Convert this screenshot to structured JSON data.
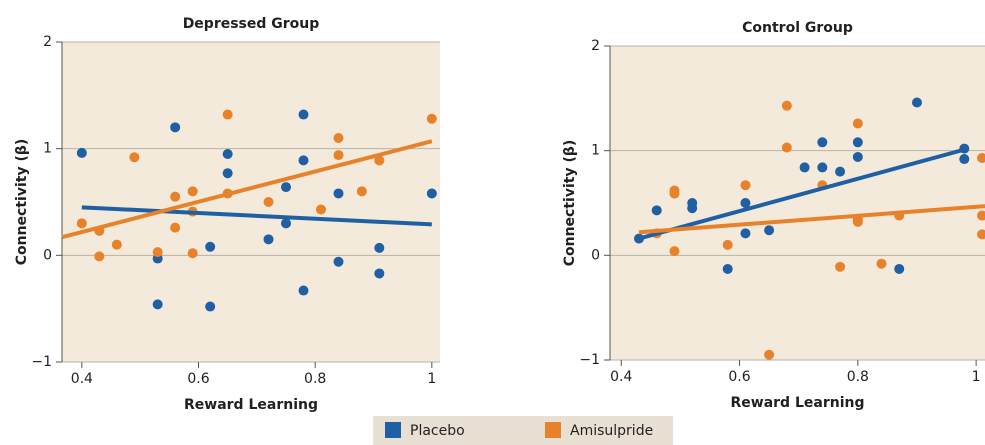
{
  "chart_data": [
    {
      "type": "scatter",
      "title": "Depressed Group",
      "x_label": "Reward Learning",
      "y_label": "Connectivity (β)",
      "xlim": [
        0.366,
        1.014
      ],
      "ylim": [
        -1,
        2
      ],
      "xticks": [
        0.4,
        0.6,
        0.8,
        1
      ],
      "yticks": [
        {
          "value": -1,
          "label": "−1"
        },
        0,
        1,
        2
      ],
      "grid": true,
      "series": [
        {
          "name": "Placebo",
          "color": "#1f5fa3",
          "x": [
            0.4,
            0.56,
            0.53,
            0.53,
            0.62,
            0.62,
            0.65,
            0.65,
            0.72,
            0.75,
            0.75,
            0.78,
            0.78,
            0.78,
            0.84,
            0.84,
            0.91,
            0.91,
            1.0
          ],
          "values": [
            0.96,
            1.2,
            -0.03,
            -0.46,
            0.08,
            -0.48,
            0.95,
            0.77,
            0.15,
            0.64,
            0.3,
            1.32,
            0.89,
            -0.33,
            0.58,
            -0.06,
            0.07,
            -0.17,
            0.58
          ],
          "trend": {
            "x": [
              0.4,
              1.0
            ],
            "values": [
              0.45,
              0.29
            ]
          }
        },
        {
          "name": "Amisulpride",
          "color": "#e8822a",
          "x": [
            0.4,
            0.43,
            0.43,
            0.46,
            0.49,
            0.53,
            0.56,
            0.56,
            0.59,
            0.59,
            0.59,
            0.65,
            0.65,
            0.72,
            0.81,
            0.84,
            0.84,
            0.88,
            0.91,
            1.0
          ],
          "values": [
            0.3,
            0.23,
            -0.01,
            0.1,
            0.92,
            0.03,
            0.55,
            0.26,
            0.6,
            0.41,
            0.02,
            1.32,
            0.58,
            0.5,
            0.43,
            1.1,
            0.94,
            0.6,
            0.89,
            1.28
          ],
          "trend": {
            "x": [
              0.366,
              1.0
            ],
            "values": [
              0.17,
              1.07
            ]
          }
        }
      ]
    },
    {
      "type": "scatter",
      "title": "Control Group",
      "x_label": "Reward Learning",
      "y_label": "Connectivity (β)",
      "xlim": [
        0.381,
        1.015
      ],
      "ylim": [
        -1,
        2
      ],
      "xticks": [
        0.4,
        0.6,
        0.8,
        1
      ],
      "yticks": [
        {
          "value": -1,
          "label": "−1"
        },
        0,
        1,
        2
      ],
      "grid": true,
      "series": [
        {
          "name": "Placebo",
          "color": "#1f5fa3",
          "x": [
            0.43,
            0.46,
            0.52,
            0.52,
            0.58,
            0.61,
            0.61,
            0.65,
            0.71,
            0.74,
            0.74,
            0.77,
            0.8,
            0.8,
            0.87,
            0.9,
            0.98,
            0.98
          ],
          "values": [
            0.16,
            0.43,
            0.5,
            0.45,
            -0.13,
            0.5,
            0.21,
            0.24,
            0.84,
            1.08,
            0.84,
            0.8,
            1.08,
            0.94,
            -0.13,
            1.46,
            1.02,
            0.92
          ],
          "trend": {
            "x": [
              0.43,
              0.98
            ],
            "values": [
              0.16,
              1.01
            ]
          }
        },
        {
          "name": "Amisulpride",
          "color": "#e8822a",
          "x": [
            0.46,
            0.49,
            0.49,
            0.49,
            0.58,
            0.61,
            0.65,
            0.68,
            0.68,
            0.74,
            0.77,
            0.8,
            0.8,
            0.8,
            0.84,
            0.87,
            1.01,
            1.01,
            1.01
          ],
          "values": [
            0.21,
            0.62,
            0.59,
            0.04,
            0.1,
            0.67,
            -0.95,
            1.43,
            1.03,
            0.67,
            -0.11,
            1.26,
            0.35,
            0.32,
            -0.08,
            0.38,
            0.93,
            0.38,
            0.2
          ],
          "trend": {
            "x": [
              0.43,
              1.015
            ],
            "values": [
              0.22,
              0.47
            ]
          }
        }
      ]
    }
  ],
  "legend": {
    "position": "bottom"
  }
}
